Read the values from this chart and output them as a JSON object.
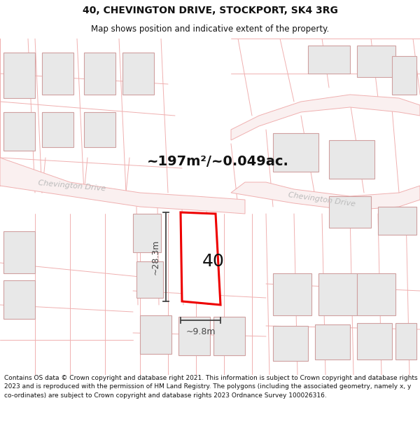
{
  "title": "40, CHEVINGTON DRIVE, STOCKPORT, SK4 3RG",
  "subtitle": "Map shows position and indicative extent of the property.",
  "footer": "Contains OS data © Crown copyright and database right 2021. This information is subject to Crown copyright and database rights 2023 and is reproduced with the permission of HM Land Registry. The polygons (including the associated geometry, namely x, y co-ordinates) are subject to Crown copyright and database rights 2023 Ordnance Survey 100026316.",
  "area_label": "~197m²/~0.049ac.",
  "property_number": "40",
  "dim_height": "~28.3m",
  "dim_width": "~9.8m",
  "bg_color": "#ffffff",
  "road_stroke": "#f0b0b0",
  "road_fill": "#faf0f0",
  "building_fill": "#e8e8e8",
  "building_stroke": "#d0a0a0",
  "highlight_stroke": "#ee0000",
  "highlight_fill": "#ffffff",
  "dim_color": "#444444",
  "road_label_color": "#bbbbbb",
  "title_fontsize": 10,
  "subtitle_fontsize": 8.5,
  "footer_fontsize": 6.5
}
